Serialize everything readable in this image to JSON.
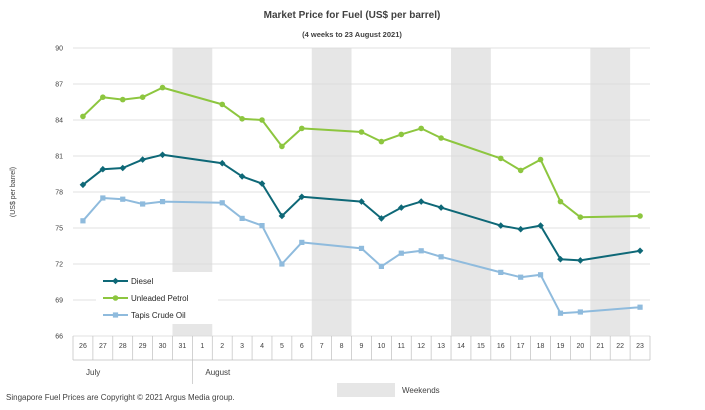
{
  "chart_data": {
    "type": "line",
    "title": "Market Price for Fuel (US$ per barrel)",
    "subtitle": "(4 weeks to 23 August 2021)",
    "ylabel": "(US$ per barrel)",
    "xlabel": "",
    "ylim": [
      66,
      90
    ],
    "yticks": [
      66,
      69,
      72,
      75,
      78,
      81,
      84,
      87,
      90
    ],
    "categories": [
      "26",
      "27",
      "28",
      "29",
      "30",
      "31",
      "1",
      "2",
      "3",
      "4",
      "5",
      "6",
      "7",
      "8",
      "9",
      "10",
      "11",
      "12",
      "13",
      "14",
      "15",
      "16",
      "17",
      "18",
      "19",
      "20",
      "21",
      "22",
      "23"
    ],
    "months": [
      {
        "label": "July",
        "start_index": 0
      },
      {
        "label": "August",
        "start_index": 6
      }
    ],
    "weekend_bands": [
      [
        5,
        6
      ],
      [
        12,
        13
      ],
      [
        19,
        20
      ],
      [
        26,
        27
      ]
    ],
    "weekend_color": "#e6e6e6",
    "series": [
      {
        "name": "Diesel",
        "color": "#0e6877",
        "marker": "diamond",
        "points": [
          [
            0,
            78.6
          ],
          [
            1,
            79.9
          ],
          [
            2,
            80.0
          ],
          [
            3,
            80.7
          ],
          [
            4,
            81.1
          ],
          [
            7,
            80.4
          ],
          [
            8,
            79.3
          ],
          [
            9,
            78.7
          ],
          [
            10,
            76.0
          ],
          [
            11,
            77.6
          ],
          [
            14,
            77.2
          ],
          [
            15,
            75.8
          ],
          [
            16,
            76.7
          ],
          [
            17,
            77.2
          ],
          [
            18,
            76.7
          ],
          [
            21,
            75.2
          ],
          [
            22,
            74.9
          ],
          [
            23,
            75.2
          ],
          [
            24,
            72.4
          ],
          [
            25,
            72.3
          ],
          [
            28,
            73.1
          ]
        ]
      },
      {
        "name": "Unleaded Petrol",
        "color": "#8dc63f",
        "marker": "circle",
        "points": [
          [
            0,
            84.3
          ],
          [
            1,
            85.9
          ],
          [
            2,
            85.7
          ],
          [
            3,
            85.9
          ],
          [
            4,
            86.7
          ],
          [
            7,
            85.3
          ],
          [
            8,
            84.1
          ],
          [
            9,
            84.0
          ],
          [
            10,
            81.8
          ],
          [
            11,
            83.3
          ],
          [
            14,
            83.0
          ],
          [
            15,
            82.2
          ],
          [
            16,
            82.8
          ],
          [
            17,
            83.3
          ],
          [
            18,
            82.5
          ],
          [
            21,
            80.8
          ],
          [
            22,
            79.8
          ],
          [
            23,
            80.7
          ],
          [
            24,
            77.2
          ],
          [
            25,
            75.9
          ],
          [
            28,
            76.0
          ]
        ]
      },
      {
        "name": "Tapis Crude Oil",
        "color": "#8fbbdd",
        "marker": "square",
        "points": [
          [
            0,
            75.6
          ],
          [
            1,
            77.5
          ],
          [
            2,
            77.4
          ],
          [
            3,
            77.0
          ],
          [
            4,
            77.2
          ],
          [
            7,
            77.1
          ],
          [
            8,
            75.8
          ],
          [
            9,
            75.2
          ],
          [
            10,
            72.0
          ],
          [
            11,
            73.8
          ],
          [
            14,
            73.3
          ],
          [
            15,
            71.8
          ],
          [
            16,
            72.9
          ],
          [
            17,
            73.1
          ],
          [
            18,
            72.6
          ],
          [
            21,
            71.3
          ],
          [
            22,
            70.9
          ],
          [
            23,
            71.1
          ],
          [
            24,
            67.9
          ],
          [
            25,
            68.0
          ],
          [
            28,
            68.4
          ]
        ]
      }
    ],
    "legend": [
      "Diesel",
      "Unleaded Petrol",
      "Tapis Crude Oil"
    ],
    "weekends_label": "Weekends",
    "grid": true,
    "grid_color": "#d9d9d9",
    "axis_text_color": "#404040"
  },
  "footer": {
    "copyright": "Singapore Fuel Prices are Copyright © 2021 Argus Media group."
  }
}
